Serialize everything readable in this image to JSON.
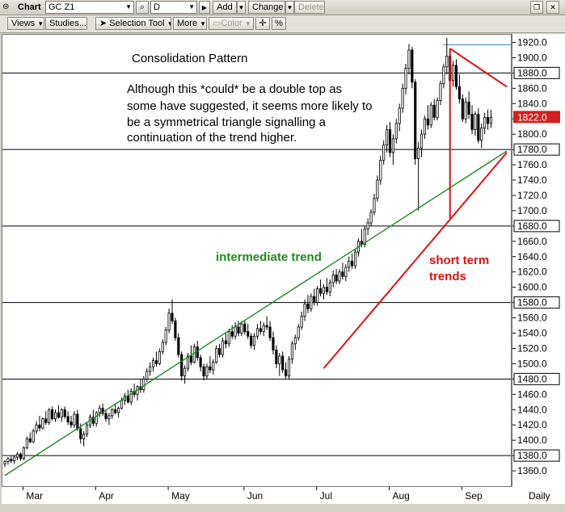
{
  "toolbar": {
    "chart_label": "Chart",
    "symbol_value": "GC Z1",
    "interval_value": "D",
    "add_label": "Add",
    "change_label": "Change",
    "delete_label": "Delete",
    "views_label": "Views",
    "studies_label": "Studies...",
    "selection_tool_label": "Selection Tool",
    "more_label": "More",
    "color_label": "Color",
    "crosshair_glyph": "✛",
    "percent_label": "%"
  },
  "chart_data": {
    "type": "candlestick",
    "annotations": {
      "title": "Consolidation Pattern",
      "comment_lines": [
        "Although this *could* be a double top as",
        "some have suggested, it seems more likely to",
        "be a symmetrical triangle signalling a",
        "continuation of the trend higher."
      ],
      "intermediate_label": "intermediate trend",
      "short_label_lines": [
        "short term",
        "trends"
      ]
    },
    "ylim": [
      1340,
      1930
    ],
    "y_ticks": [
      1360,
      1380,
      1400,
      1420,
      1440,
      1460,
      1480,
      1500,
      1520,
      1540,
      1560,
      1580,
      1600,
      1620,
      1640,
      1660,
      1680,
      1700,
      1720,
      1740,
      1760,
      1780,
      1800,
      1820,
      1840,
      1860,
      1880,
      1900,
      1920
    ],
    "boxed_levels": [
      1380,
      1480,
      1580,
      1680,
      1780,
      1880
    ],
    "horizontal_lines": [
      1380,
      1480,
      1580,
      1680,
      1780,
      1880
    ],
    "last_price": "1822.0",
    "x_labels": [
      "Mar",
      "Apr",
      "May",
      "Jun",
      "Jul",
      "Aug",
      "Sep"
    ],
    "x_label_positions": [
      6,
      29,
      52,
      76,
      99,
      122,
      145
    ],
    "x_scale_label": "Daily",
    "num_bars": 160,
    "trendlines": [
      {
        "name": "intermediate trend",
        "color": "#1e8a1e",
        "from": [
          0,
          1354
        ],
        "to": [
          159,
          1778
        ]
      },
      {
        "name": "short term",
        "color": "#e01010",
        "from": [
          101,
          1494
        ],
        "to": [
          159,
          1776
        ]
      },
      {
        "name": "short term",
        "color": "#e01010",
        "from": [
          141,
          1912
        ],
        "to": [
          159,
          1862
        ]
      },
      {
        "name": "short term",
        "color": "#e01010",
        "from": [
          141,
          1912
        ],
        "to": [
          141,
          1690
        ]
      }
    ],
    "bars": [
      [
        1369,
        1374,
        1365,
        1372
      ],
      [
        1372,
        1378,
        1368,
        1376
      ],
      [
        1375,
        1379,
        1370,
        1373
      ],
      [
        1373,
        1380,
        1369,
        1378
      ],
      [
        1378,
        1385,
        1374,
        1382
      ],
      [
        1382,
        1384,
        1373,
        1376
      ],
      [
        1376,
        1392,
        1374,
        1390
      ],
      [
        1390,
        1405,
        1388,
        1402
      ],
      [
        1402,
        1410,
        1396,
        1398
      ],
      [
        1398,
        1415,
        1396,
        1412
      ],
      [
        1412,
        1425,
        1408,
        1420
      ],
      [
        1420,
        1432,
        1412,
        1416
      ],
      [
        1416,
        1430,
        1414,
        1428
      ],
      [
        1428,
        1438,
        1420,
        1423
      ],
      [
        1423,
        1442,
        1420,
        1440
      ],
      [
        1440,
        1444,
        1426,
        1428
      ],
      [
        1428,
        1440,
        1424,
        1436
      ],
      [
        1436,
        1446,
        1428,
        1430
      ],
      [
        1430,
        1442,
        1424,
        1440
      ],
      [
        1440,
        1444,
        1428,
        1431
      ],
      [
        1431,
        1438,
        1420,
        1424
      ],
      [
        1424,
        1432,
        1416,
        1420
      ],
      [
        1420,
        1438,
        1416,
        1434
      ],
      [
        1434,
        1440,
        1412,
        1415
      ],
      [
        1415,
        1422,
        1396,
        1402
      ],
      [
        1402,
        1412,
        1392,
        1408
      ],
      [
        1408,
        1424,
        1404,
        1420
      ],
      [
        1420,
        1434,
        1416,
        1430
      ],
      [
        1430,
        1440,
        1418,
        1422
      ],
      [
        1422,
        1438,
        1418,
        1436
      ],
      [
        1436,
        1446,
        1430,
        1442
      ],
      [
        1442,
        1448,
        1432,
        1435
      ],
      [
        1435,
        1440,
        1424,
        1428
      ],
      [
        1428,
        1436,
        1420,
        1432
      ],
      [
        1432,
        1442,
        1428,
        1440
      ],
      [
        1440,
        1448,
        1434,
        1436
      ],
      [
        1436,
        1444,
        1430,
        1442
      ],
      [
        1442,
        1456,
        1440,
        1452
      ],
      [
        1452,
        1462,
        1446,
        1458
      ],
      [
        1458,
        1466,
        1448,
        1450
      ],
      [
        1450,
        1468,
        1446,
        1464
      ],
      [
        1464,
        1474,
        1456,
        1460
      ],
      [
        1460,
        1472,
        1452,
        1470
      ],
      [
        1470,
        1480,
        1462,
        1466
      ],
      [
        1466,
        1484,
        1462,
        1480
      ],
      [
        1480,
        1494,
        1476,
        1490
      ],
      [
        1490,
        1502,
        1484,
        1496
      ],
      [
        1496,
        1508,
        1490,
        1504
      ],
      [
        1504,
        1516,
        1496,
        1500
      ],
      [
        1500,
        1520,
        1498,
        1516
      ],
      [
        1516,
        1532,
        1512,
        1528
      ],
      [
        1528,
        1548,
        1524,
        1544
      ],
      [
        1544,
        1572,
        1540,
        1566
      ],
      [
        1566,
        1584,
        1552,
        1556
      ],
      [
        1556,
        1560,
        1530,
        1534
      ],
      [
        1534,
        1540,
        1508,
        1512
      ],
      [
        1512,
        1516,
        1478,
        1484
      ],
      [
        1484,
        1498,
        1474,
        1494
      ],
      [
        1494,
        1514,
        1490,
        1510
      ],
      [
        1510,
        1524,
        1498,
        1502
      ],
      [
        1502,
        1526,
        1500,
        1522
      ],
      [
        1522,
        1530,
        1504,
        1508
      ],
      [
        1508,
        1512,
        1490,
        1496
      ],
      [
        1496,
        1500,
        1478,
        1484
      ],
      [
        1484,
        1500,
        1480,
        1496
      ],
      [
        1496,
        1510,
        1488,
        1492
      ],
      [
        1492,
        1506,
        1486,
        1502
      ],
      [
        1502,
        1524,
        1500,
        1520
      ],
      [
        1520,
        1526,
        1508,
        1512
      ],
      [
        1512,
        1534,
        1508,
        1530
      ],
      [
        1530,
        1540,
        1520,
        1526
      ],
      [
        1526,
        1546,
        1522,
        1542
      ],
      [
        1542,
        1550,
        1532,
        1536
      ],
      [
        1536,
        1554,
        1532,
        1548
      ],
      [
        1548,
        1556,
        1536,
        1540
      ],
      [
        1540,
        1556,
        1536,
        1552
      ],
      [
        1552,
        1556,
        1538,
        1542
      ],
      [
        1542,
        1552,
        1532,
        1536
      ],
      [
        1536,
        1540,
        1520,
        1524
      ],
      [
        1524,
        1540,
        1518,
        1536
      ],
      [
        1536,
        1552,
        1532,
        1546
      ],
      [
        1546,
        1556,
        1538,
        1542
      ],
      [
        1542,
        1554,
        1536,
        1550
      ],
      [
        1550,
        1562,
        1544,
        1548
      ],
      [
        1548,
        1556,
        1530,
        1534
      ],
      [
        1534,
        1542,
        1512,
        1518
      ],
      [
        1518,
        1524,
        1494,
        1500
      ],
      [
        1500,
        1514,
        1484,
        1510
      ],
      [
        1510,
        1516,
        1488,
        1492
      ],
      [
        1492,
        1502,
        1480,
        1484
      ],
      [
        1484,
        1510,
        1480,
        1506
      ],
      [
        1506,
        1530,
        1500,
        1526
      ],
      [
        1526,
        1538,
        1518,
        1534
      ],
      [
        1534,
        1552,
        1530,
        1548
      ],
      [
        1548,
        1568,
        1544,
        1562
      ],
      [
        1562,
        1584,
        1556,
        1578
      ],
      [
        1578,
        1590,
        1566,
        1572
      ],
      [
        1572,
        1592,
        1568,
        1588
      ],
      [
        1588,
        1598,
        1576,
        1580
      ],
      [
        1580,
        1602,
        1576,
        1598
      ],
      [
        1598,
        1610,
        1588,
        1592
      ],
      [
        1592,
        1604,
        1584,
        1600
      ],
      [
        1600,
        1612,
        1590,
        1594
      ],
      [
        1594,
        1610,
        1588,
        1606
      ],
      [
        1606,
        1622,
        1600,
        1616
      ],
      [
        1616,
        1624,
        1604,
        1608
      ],
      [
        1608,
        1624,
        1604,
        1620
      ],
      [
        1620,
        1632,
        1610,
        1614
      ],
      [
        1614,
        1630,
        1608,
        1626
      ],
      [
        1626,
        1640,
        1620,
        1634
      ],
      [
        1634,
        1644,
        1624,
        1628
      ],
      [
        1628,
        1650,
        1624,
        1646
      ],
      [
        1646,
        1664,
        1640,
        1660
      ],
      [
        1660,
        1676,
        1652,
        1656
      ],
      [
        1656,
        1680,
        1652,
        1676
      ],
      [
        1676,
        1690,
        1668,
        1684
      ],
      [
        1684,
        1702,
        1680,
        1698
      ],
      [
        1698,
        1722,
        1694,
        1716
      ],
      [
        1716,
        1746,
        1712,
        1740
      ],
      [
        1740,
        1772,
        1734,
        1766
      ],
      [
        1766,
        1792,
        1760,
        1786
      ],
      [
        1786,
        1812,
        1776,
        1806
      ],
      [
        1806,
        1816,
        1770,
        1776
      ],
      [
        1776,
        1800,
        1760,
        1794
      ],
      [
        1794,
        1820,
        1788,
        1814
      ],
      [
        1814,
        1840,
        1804,
        1834
      ],
      [
        1834,
        1866,
        1828,
        1860
      ],
      [
        1860,
        1892,
        1852,
        1886
      ],
      [
        1886,
        1918,
        1878,
        1910
      ],
      [
        1910,
        1914,
        1860,
        1868
      ],
      [
        1868,
        1872,
        1760,
        1768
      ],
      [
        1768,
        1790,
        1700,
        1782
      ],
      [
        1782,
        1806,
        1770,
        1800
      ],
      [
        1800,
        1824,
        1794,
        1820
      ],
      [
        1820,
        1838,
        1806,
        1812
      ],
      [
        1812,
        1842,
        1808,
        1838
      ],
      [
        1838,
        1846,
        1818,
        1822
      ],
      [
        1822,
        1848,
        1818,
        1844
      ],
      [
        1844,
        1870,
        1838,
        1866
      ],
      [
        1866,
        1892,
        1860,
        1888
      ],
      [
        1888,
        1926,
        1878,
        1902
      ],
      [
        1902,
        1908,
        1864,
        1870
      ],
      [
        1870,
        1896,
        1862,
        1890
      ],
      [
        1890,
        1898,
        1858,
        1862
      ],
      [
        1862,
        1878,
        1840,
        1846
      ],
      [
        1846,
        1852,
        1816,
        1820
      ],
      [
        1820,
        1848,
        1814,
        1842
      ],
      [
        1842,
        1856,
        1820,
        1826
      ],
      [
        1826,
        1838,
        1800,
        1806
      ],
      [
        1806,
        1830,
        1798,
        1826
      ],
      [
        1826,
        1834,
        1788,
        1792
      ],
      [
        1792,
        1814,
        1782,
        1808
      ],
      [
        1808,
        1828,
        1800,
        1822
      ],
      [
        1822,
        1832,
        1806,
        1814
      ],
      [
        1814,
        1832,
        1808,
        1822
      ]
    ]
  }
}
